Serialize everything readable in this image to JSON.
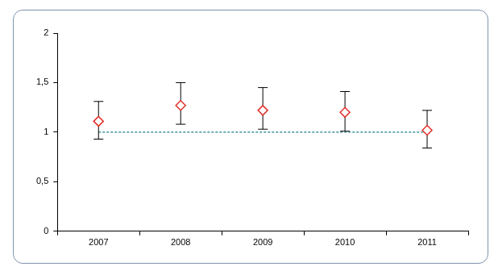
{
  "chart_data": {
    "type": "errorbar",
    "categories": [
      "2007",
      "2008",
      "2009",
      "2010",
      "2011"
    ],
    "series": [
      {
        "color": "#e0312b",
        "marker": "diamond",
        "values": [
          1.11,
          1.27,
          1.22,
          1.2,
          1.02
        ],
        "lower": [
          0.93,
          1.08,
          1.03,
          1.01,
          0.84
        ],
        "upper": [
          1.31,
          1.5,
          1.45,
          1.41,
          1.22
        ]
      }
    ],
    "reference_lines": [
      {
        "value": 1,
        "color": "#1f7f87",
        "line_style": "dashed"
      }
    ],
    "ylim": [
      0,
      2
    ],
    "yticks": [
      0,
      {
        "value": 0.5,
        "label": "0,5"
      },
      1,
      {
        "value": 1.5,
        "label": "1,5"
      },
      2
    ],
    "grid": false
  }
}
